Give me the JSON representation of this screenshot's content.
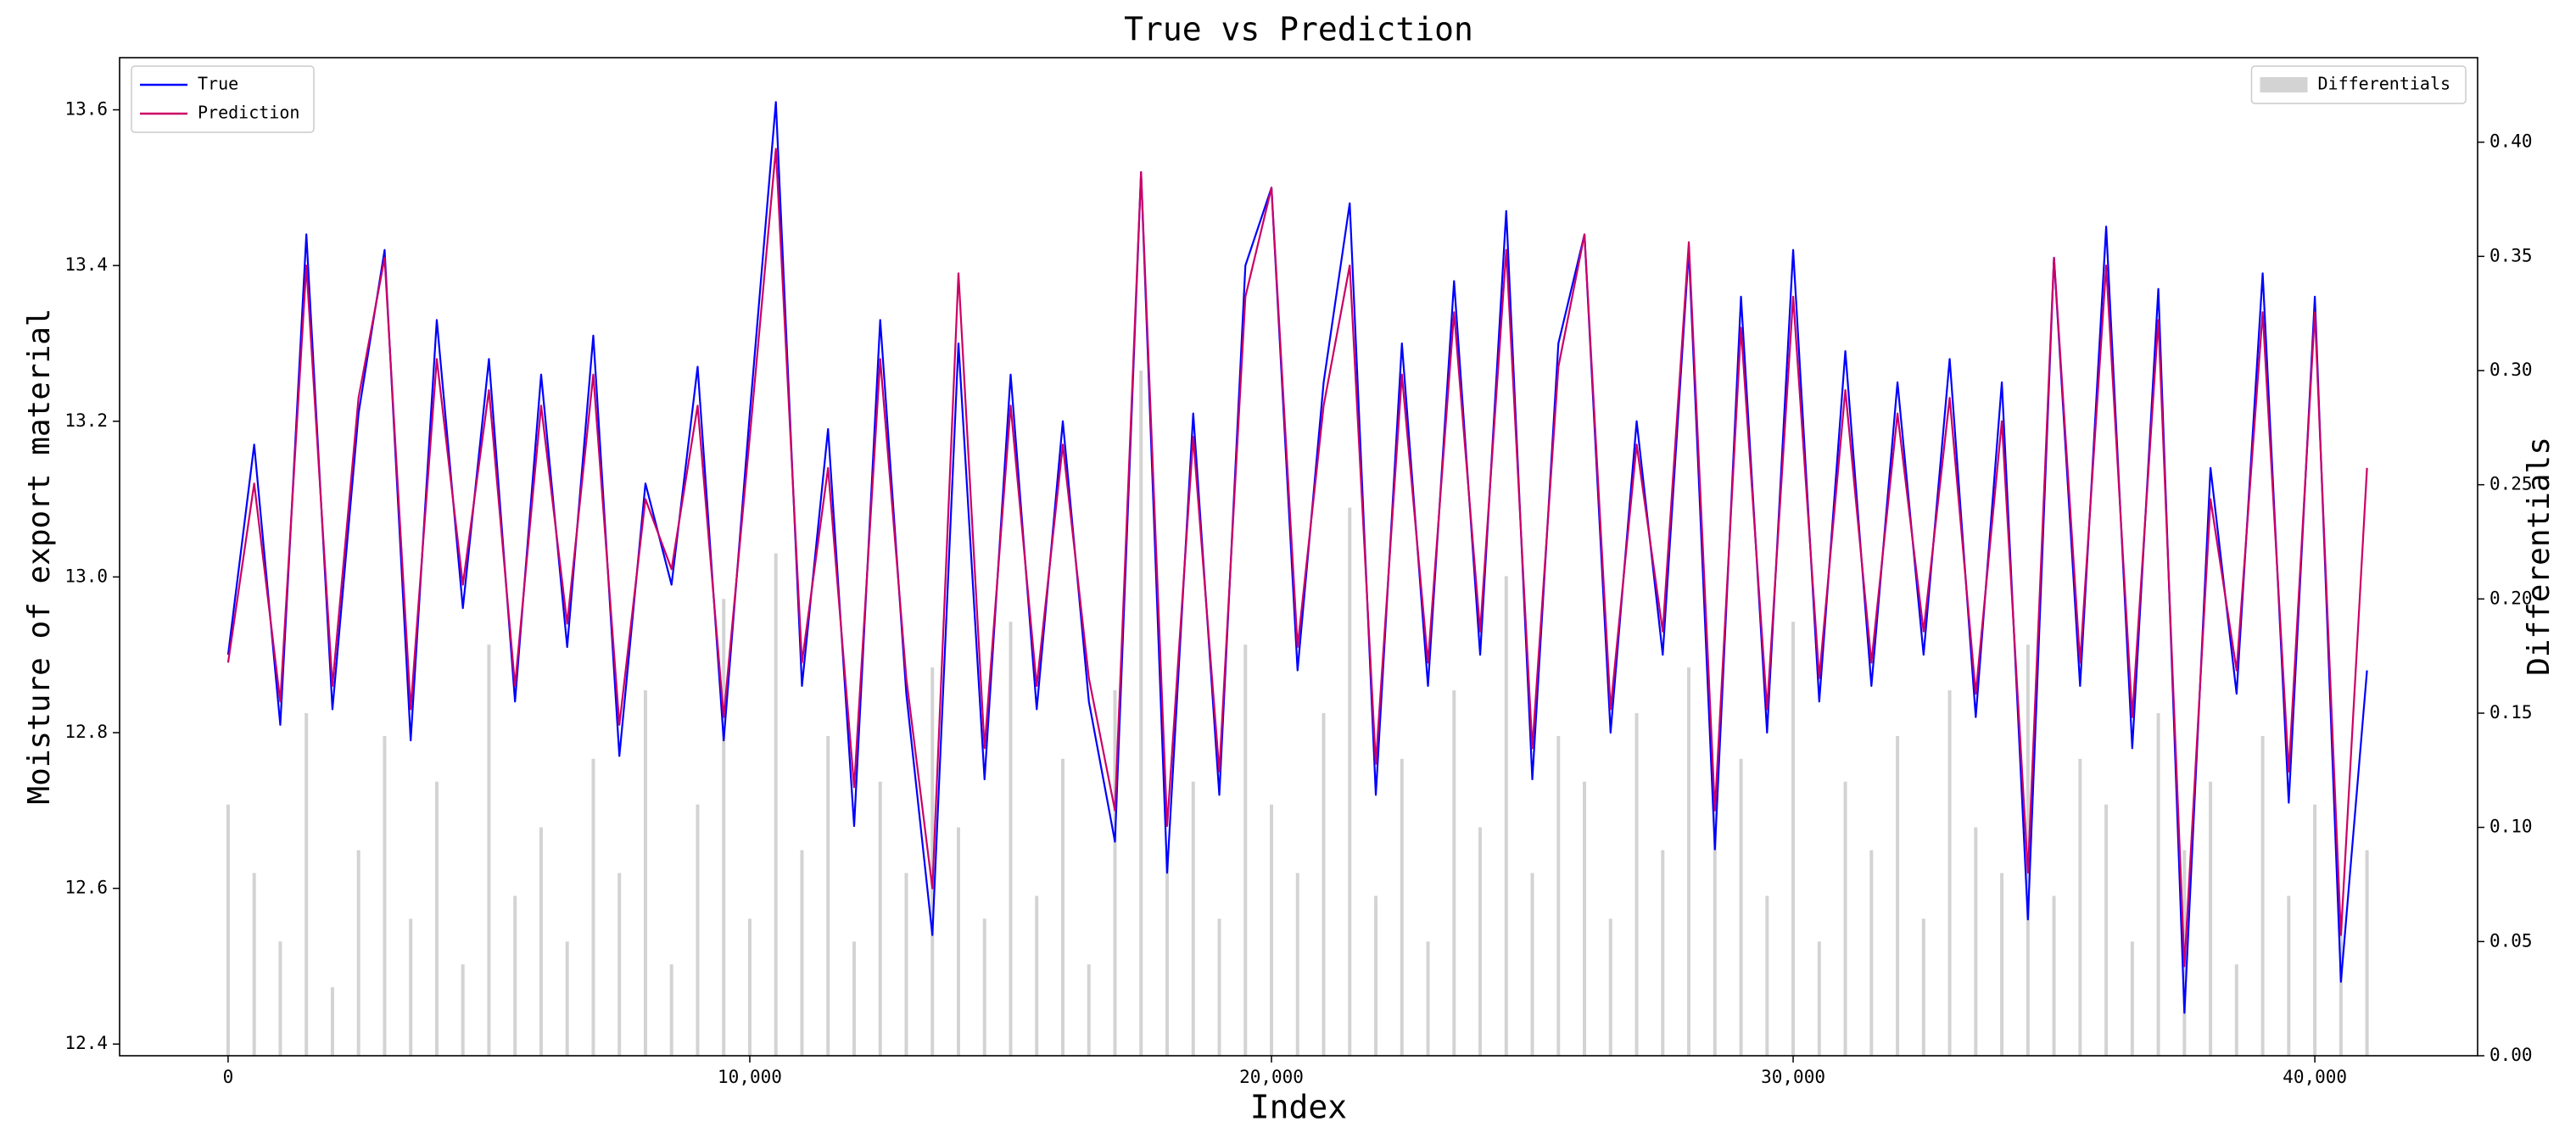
{
  "chart_data": {
    "type": "line",
    "title": "True vs Prediction",
    "xlabel": "Index",
    "ylabel": "Moisture of export material",
    "y2label": "Differentials",
    "x": [
      0,
      500,
      1000,
      1500,
      2000,
      2500,
      3000,
      3500,
      4000,
      4500,
      5000,
      5500,
      6000,
      6500,
      7000,
      7500,
      8000,
      8500,
      9000,
      9500,
      10000,
      10500,
      11000,
      11500,
      12000,
      12500,
      13000,
      13500,
      14000,
      14500,
      15000,
      15500,
      16000,
      16500,
      17000,
      17500,
      18000,
      18500,
      19000,
      19500,
      20000,
      20500,
      21000,
      21500,
      22000,
      22500,
      23000,
      23500,
      24000,
      24500,
      25000,
      25500,
      26000,
      26500,
      27000,
      27500,
      28000,
      28500,
      29000,
      29500,
      30000,
      30500,
      31000,
      31500,
      32000,
      32500,
      33000,
      33500,
      34000,
      34500,
      35000,
      35500,
      36000,
      36500,
      37000,
      37500,
      38000,
      38500,
      39000,
      39500,
      40000,
      40500,
      41000
    ],
    "series": [
      {
        "name": "True",
        "color": "#0000ff",
        "values": [
          12.9,
          13.17,
          12.81,
          13.44,
          12.83,
          13.21,
          13.42,
          12.79,
          13.33,
          12.96,
          13.28,
          12.84,
          13.26,
          12.91,
          13.31,
          12.77,
          13.12,
          12.99,
          13.27,
          12.79,
          13.21,
          13.61,
          12.86,
          13.19,
          12.68,
          13.33,
          12.85,
          12.54,
          13.3,
          12.74,
          13.26,
          12.83,
          13.2,
          12.84,
          12.66,
          13.52,
          12.62,
          13.21,
          12.72,
          13.4,
          13.5,
          12.88,
          13.25,
          13.48,
          12.72,
          13.3,
          12.86,
          13.38,
          12.9,
          13.47,
          12.74,
          13.3,
          13.44,
          12.8,
          13.2,
          12.9,
          13.42,
          12.65,
          13.36,
          12.8,
          13.42,
          12.84,
          13.29,
          12.86,
          13.25,
          12.9,
          13.28,
          12.82,
          13.25,
          12.56,
          13.41,
          12.86,
          13.45,
          12.78,
          13.37,
          12.44,
          13.14,
          12.85,
          13.39,
          12.71,
          13.36,
          12.48,
          12.88
        ]
      },
      {
        "name": "Prediction",
        "color": "#cc0066",
        "values": [
          12.89,
          13.12,
          12.84,
          13.4,
          12.86,
          13.23,
          13.41,
          12.83,
          13.28,
          12.99,
          13.24,
          12.86,
          13.22,
          12.94,
          13.26,
          12.81,
          13.1,
          13.01,
          13.22,
          12.82,
          13.18,
          13.55,
          12.89,
          13.14,
          12.73,
          13.28,
          12.87,
          12.6,
          13.39,
          12.78,
          13.22,
          12.86,
          13.17,
          12.87,
          12.7,
          13.52,
          12.68,
          13.18,
          12.75,
          13.36,
          13.5,
          12.91,
          13.22,
          13.4,
          12.76,
          13.26,
          12.89,
          13.34,
          12.93,
          13.42,
          12.78,
          13.27,
          13.44,
          12.83,
          13.17,
          12.93,
          13.43,
          12.7,
          13.32,
          12.83,
          13.36,
          12.87,
          13.24,
          12.89,
          13.21,
          12.93,
          13.23,
          12.85,
          13.2,
          12.62,
          13.41,
          12.89,
          13.4,
          12.82,
          13.33,
          12.5,
          13.1,
          12.88,
          13.34,
          12.75,
          13.34,
          12.54,
          13.14
        ]
      },
      {
        "name": "Differentials",
        "color": "#d3d3d3",
        "type": "bar",
        "axis": "y2",
        "values": [
          0.11,
          0.08,
          0.05,
          0.15,
          0.03,
          0.09,
          0.14,
          0.06,
          0.12,
          0.04,
          0.18,
          0.07,
          0.1,
          0.05,
          0.13,
          0.08,
          0.16,
          0.04,
          0.11,
          0.2,
          0.06,
          0.22,
          0.09,
          0.14,
          0.05,
          0.12,
          0.08,
          0.17,
          0.1,
          0.06,
          0.19,
          0.07,
          0.13,
          0.04,
          0.16,
          0.3,
          0.09,
          0.12,
          0.06,
          0.18,
          0.11,
          0.08,
          0.15,
          0.24,
          0.07,
          0.13,
          0.05,
          0.16,
          0.1,
          0.21,
          0.08,
          0.14,
          0.12,
          0.06,
          0.15,
          0.09,
          0.17,
          0.11,
          0.13,
          0.07,
          0.19,
          0.05,
          0.12,
          0.09,
          0.14,
          0.06,
          0.16,
          0.1,
          0.08,
          0.18,
          0.07,
          0.13,
          0.11,
          0.05,
          0.15,
          0.09,
          0.12,
          0.04,
          0.14,
          0.07,
          0.11,
          0.06,
          0.09
        ]
      }
    ],
    "xlim": [
      -2080,
      43120
    ],
    "xticks": [
      0,
      {
        "value": 10000,
        "label": "10,000"
      },
      {
        "value": 20000,
        "label": "20,000"
      },
      {
        "value": 30000,
        "label": "30,000"
      },
      {
        "value": 40000,
        "label": "40,000"
      }
    ],
    "ylim": [
      12.385,
      13.667
    ],
    "yticks": [
      12.4,
      12.6,
      12.8,
      {
        "value": 13.0,
        "label": "13.0"
      },
      13.2,
      13.4,
      13.6
    ],
    "y2lim": [
      0,
      0.437
    ],
    "y2ticks": [
      {
        "value": 0,
        "label": "0.00"
      },
      0.05,
      {
        "value": 0.1,
        "label": "0.10"
      },
      0.15,
      {
        "value": 0.2,
        "label": "0.20"
      },
      0.25,
      {
        "value": 0.3,
        "label": "0.30"
      },
      0.35,
      {
        "value": 0.4,
        "label": "0.40"
      }
    ],
    "legend": "upper left",
    "legend2": "upper right",
    "grid": false
  }
}
